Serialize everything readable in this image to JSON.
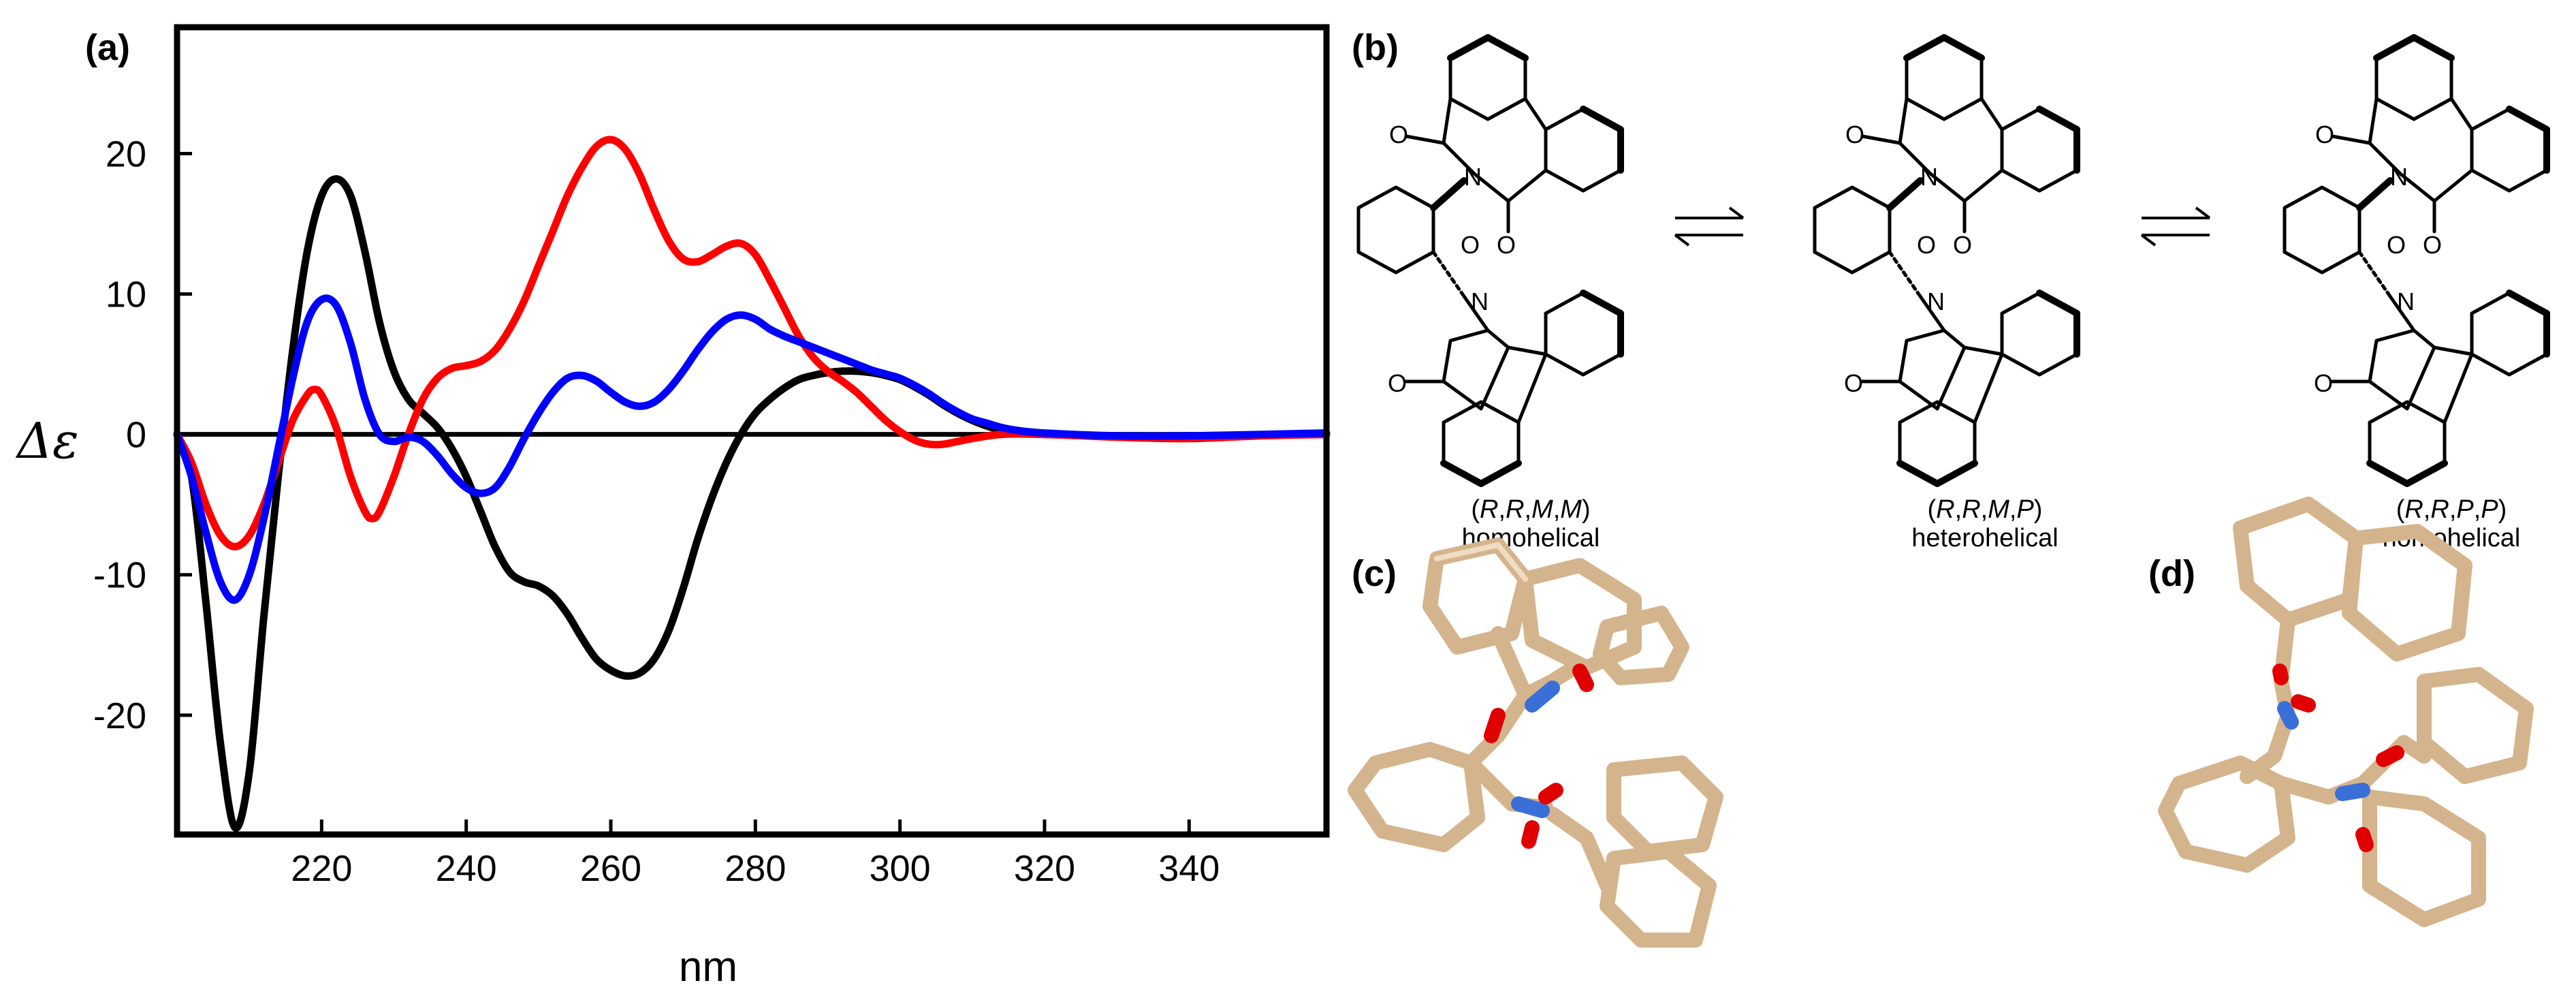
{
  "panels": {
    "a": "(a)",
    "b": "(b)",
    "c": "(c)",
    "d": "(d)"
  },
  "chart_data": {
    "type": "line",
    "xlabel": "nm",
    "ylabel": "Δε",
    "xlim": [
      200,
      359
    ],
    "ylim": [
      -28.5,
      29
    ],
    "xticks": [
      220,
      240,
      260,
      280,
      300,
      320,
      340
    ],
    "yticks": [
      20,
      10,
      0,
      -10,
      -20
    ],
    "zero_line": true,
    "series": [
      {
        "color": "#000000",
        "points": [
          [
            200,
            0
          ],
          [
            202,
            -3
          ],
          [
            204,
            -12
          ],
          [
            206,
            -22
          ],
          [
            208,
            -28
          ],
          [
            210,
            -24
          ],
          [
            212,
            -13
          ],
          [
            214,
            -3
          ],
          [
            216,
            6
          ],
          [
            218,
            13
          ],
          [
            220,
            17
          ],
          [
            222,
            18.2
          ],
          [
            224,
            17
          ],
          [
            226,
            13
          ],
          [
            228,
            8
          ],
          [
            230,
            4.5
          ],
          [
            232,
            2.5
          ],
          [
            234,
            1.5
          ],
          [
            236,
            0.5
          ],
          [
            238,
            -1
          ],
          [
            240,
            -3
          ],
          [
            242,
            -5.5
          ],
          [
            244,
            -8
          ],
          [
            246,
            -9.8
          ],
          [
            248,
            -10.5
          ],
          [
            250,
            -10.8
          ],
          [
            252,
            -11.5
          ],
          [
            254,
            -12.8
          ],
          [
            256,
            -14.5
          ],
          [
            258,
            -16
          ],
          [
            260,
            -16.8
          ],
          [
            262,
            -17.2
          ],
          [
            264,
            -17
          ],
          [
            266,
            -16
          ],
          [
            268,
            -14
          ],
          [
            270,
            -11
          ],
          [
            272,
            -7.5
          ],
          [
            274,
            -4.5
          ],
          [
            276,
            -2
          ],
          [
            278,
            0
          ],
          [
            280,
            1.5
          ],
          [
            282,
            2.5
          ],
          [
            284,
            3.3
          ],
          [
            286,
            3.9
          ],
          [
            288,
            4.2
          ],
          [
            290,
            4.4
          ],
          [
            292,
            4.5
          ],
          [
            294,
            4.5
          ],
          [
            296,
            4.4
          ],
          [
            298,
            4.2
          ],
          [
            300,
            3.9
          ],
          [
            302,
            3.4
          ],
          [
            304,
            2.8
          ],
          [
            306,
            2.1
          ],
          [
            308,
            1.5
          ],
          [
            310,
            1
          ],
          [
            312,
            0.6
          ],
          [
            314,
            0.3
          ],
          [
            316,
            0.1
          ],
          [
            320,
            0
          ],
          [
            330,
            -0.1
          ],
          [
            340,
            -0.1
          ],
          [
            359,
            0
          ]
        ]
      },
      {
        "color": "#ff0000",
        "points": [
          [
            200,
            0
          ],
          [
            202,
            -2
          ],
          [
            204,
            -5
          ],
          [
            206,
            -7.2
          ],
          [
            208,
            -8
          ],
          [
            210,
            -7.2
          ],
          [
            212,
            -5
          ],
          [
            214,
            -2
          ],
          [
            216,
            1
          ],
          [
            218,
            2.8
          ],
          [
            219,
            3.2
          ],
          [
            220,
            2.8
          ],
          [
            222,
            0.5
          ],
          [
            224,
            -3
          ],
          [
            226,
            -5.5
          ],
          [
            227,
            -6
          ],
          [
            228,
            -5.5
          ],
          [
            230,
            -3
          ],
          [
            232,
            0
          ],
          [
            234,
            2.5
          ],
          [
            236,
            4
          ],
          [
            238,
            4.7
          ],
          [
            240,
            4.9
          ],
          [
            242,
            5.2
          ],
          [
            244,
            6
          ],
          [
            246,
            7.5
          ],
          [
            248,
            9.5
          ],
          [
            250,
            12
          ],
          [
            252,
            14.5
          ],
          [
            254,
            17
          ],
          [
            256,
            19
          ],
          [
            258,
            20.5
          ],
          [
            260,
            21
          ],
          [
            262,
            20.3
          ],
          [
            264,
            18.5
          ],
          [
            266,
            16
          ],
          [
            268,
            13.8
          ],
          [
            270,
            12.5
          ],
          [
            272,
            12.3
          ],
          [
            274,
            12.8
          ],
          [
            276,
            13.4
          ],
          [
            278,
            13.6
          ],
          [
            280,
            12.8
          ],
          [
            282,
            11
          ],
          [
            284,
            9
          ],
          [
            286,
            7
          ],
          [
            288,
            5.5
          ],
          [
            290,
            4.5
          ],
          [
            292,
            3.8
          ],
          [
            294,
            3
          ],
          [
            296,
            2
          ],
          [
            298,
            1
          ],
          [
            300,
            0.2
          ],
          [
            302,
            -0.4
          ],
          [
            304,
            -0.7
          ],
          [
            306,
            -0.7
          ],
          [
            308,
            -0.5
          ],
          [
            310,
            -0.3
          ],
          [
            314,
            0
          ],
          [
            320,
            0
          ],
          [
            330,
            -0.2
          ],
          [
            340,
            -0.3
          ],
          [
            350,
            -0.1
          ],
          [
            359,
            0
          ]
        ]
      },
      {
        "color": "#0000ff",
        "points": [
          [
            200,
            0
          ],
          [
            202,
            -3
          ],
          [
            204,
            -7
          ],
          [
            206,
            -10.5
          ],
          [
            208,
            -11.8
          ],
          [
            210,
            -10
          ],
          [
            212,
            -6
          ],
          [
            214,
            -1
          ],
          [
            216,
            4
          ],
          [
            218,
            8
          ],
          [
            220,
            9.6
          ],
          [
            222,
            9.2
          ],
          [
            224,
            6.5
          ],
          [
            226,
            2.5
          ],
          [
            228,
            0
          ],
          [
            230,
            -0.5
          ],
          [
            232,
            -0.2
          ],
          [
            234,
            -0.5
          ],
          [
            236,
            -1.5
          ],
          [
            238,
            -2.8
          ],
          [
            240,
            -3.8
          ],
          [
            242,
            -4.2
          ],
          [
            244,
            -3.8
          ],
          [
            246,
            -2.3
          ],
          [
            248,
            -0.3
          ],
          [
            250,
            1.5
          ],
          [
            252,
            3
          ],
          [
            254,
            4
          ],
          [
            256,
            4.2
          ],
          [
            258,
            3.8
          ],
          [
            260,
            3
          ],
          [
            262,
            2.3
          ],
          [
            264,
            2
          ],
          [
            266,
            2.3
          ],
          [
            268,
            3.2
          ],
          [
            270,
            4.5
          ],
          [
            272,
            6
          ],
          [
            274,
            7.3
          ],
          [
            276,
            8.2
          ],
          [
            278,
            8.5
          ],
          [
            280,
            8.2
          ],
          [
            282,
            7.5
          ],
          [
            284,
            7
          ],
          [
            286,
            6.6
          ],
          [
            288,
            6.2
          ],
          [
            290,
            5.8
          ],
          [
            292,
            5.4
          ],
          [
            294,
            5
          ],
          [
            296,
            4.6
          ],
          [
            298,
            4.3
          ],
          [
            300,
            4
          ],
          [
            302,
            3.5
          ],
          [
            304,
            2.9
          ],
          [
            306,
            2.2
          ],
          [
            308,
            1.6
          ],
          [
            310,
            1.1
          ],
          [
            312,
            0.8
          ],
          [
            314,
            0.5
          ],
          [
            316,
            0.3
          ],
          [
            320,
            0.1
          ],
          [
            330,
            -0.1
          ],
          [
            340,
            -0.1
          ],
          [
            350,
            0
          ],
          [
            359,
            0.1
          ]
        ]
      }
    ]
  },
  "structures": [
    {
      "config": "(R,R,M,M)",
      "config_parts": [
        "(",
        "R",
        ",",
        "R",
        ",",
        "M",
        ",",
        "M",
        ")"
      ],
      "type": "homohelical"
    },
    {
      "config": "(R,R,M,P)",
      "config_parts": [
        "(",
        "R",
        ",",
        "R",
        ",",
        "M",
        ",",
        "P",
        ")"
      ],
      "type": "heterohelical"
    },
    {
      "config": "(R,R,P,P)",
      "config_parts": [
        "(",
        "R",
        ",",
        "R",
        ",",
        "P",
        ",",
        "P",
        ")"
      ],
      "type": "homohelical"
    }
  ],
  "atoms": {
    "oxygen": "O",
    "nitrogen": "N"
  },
  "tube_colors": {
    "carbon": "#d4b48c",
    "nitrogen": "#3a6fd8",
    "oxygen": "#e00000"
  }
}
